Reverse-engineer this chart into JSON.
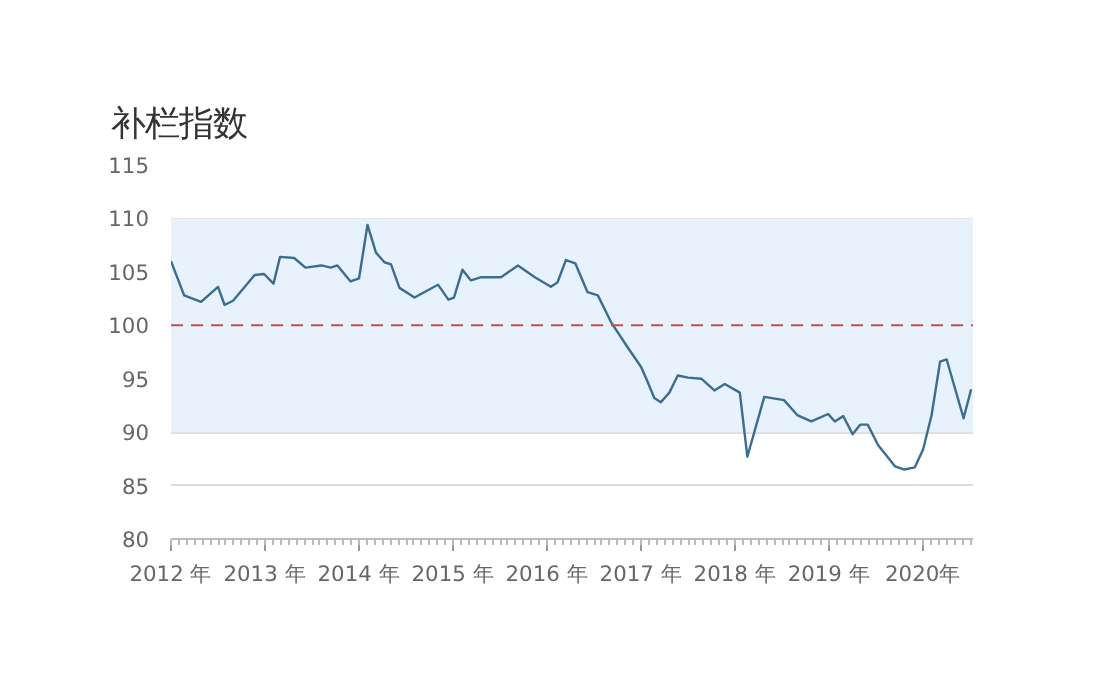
{
  "chart_data": {
    "type": "line",
    "title": "补栏指数",
    "x": [
      2012.0,
      2012.14,
      2012.32,
      2012.5,
      2012.57,
      2012.66,
      2012.89,
      2012.99,
      2013.09,
      2013.16,
      2013.31,
      2013.43,
      2013.6,
      2013.7,
      2013.77,
      2013.91,
      2014.0,
      2014.09,
      2014.18,
      2014.27,
      2014.34,
      2014.43,
      2014.59,
      2014.84,
      2014.95,
      2015.01,
      2015.1,
      2015.19,
      2015.3,
      2015.51,
      2015.69,
      2015.87,
      2016.04,
      2016.11,
      2016.2,
      2016.3,
      2016.43,
      2016.54,
      2016.68,
      2016.86,
      2017.0,
      2017.07,
      2017.14,
      2017.21,
      2017.3,
      2017.39,
      2017.5,
      2017.64,
      2017.78,
      2017.89,
      2018.05,
      2018.13,
      2018.31,
      2018.52,
      2018.66,
      2018.81,
      2018.99,
      2019.06,
      2019.15,
      2019.25,
      2019.33,
      2019.41,
      2019.52,
      2019.7,
      2019.8,
      2019.91,
      2020.0,
      2020.09,
      2020.18,
      2020.25,
      2020.43,
      2020.51
    ],
    "series": [
      {
        "color": "#3a6e8f",
        "values": [
          106.0,
          102.8,
          102.2,
          103.6,
          101.9,
          102.3,
          104.7,
          104.8,
          103.9,
          106.4,
          106.3,
          105.4,
          105.6,
          105.4,
          105.6,
          104.1,
          104.4,
          109.4,
          106.8,
          105.9,
          105.7,
          103.5,
          102.6,
          103.8,
          102.4,
          102.6,
          105.2,
          104.2,
          104.5,
          104.5,
          105.6,
          104.5,
          103.6,
          104.0,
          106.1,
          105.8,
          103.1,
          102.8,
          100.3,
          97.9,
          96.1,
          94.7,
          93.2,
          92.8,
          93.7,
          95.3,
          95.1,
          95.0,
          93.9,
          94.5,
          93.7,
          87.7,
          93.3,
          93.0,
          91.6,
          91.0,
          91.7,
          91.0,
          91.5,
          89.8,
          90.7,
          90.7,
          88.8,
          86.8,
          86.5,
          86.7,
          88.4,
          91.6,
          96.6,
          96.8,
          91.3,
          94.0
        ]
      }
    ],
    "xlim": [
      2012.0,
      2020.53
    ],
    "xticks": [
      {
        "value": 2012,
        "label": "2012 年"
      },
      {
        "value": 2013,
        "label": "2013 年"
      },
      {
        "value": 2014,
        "label": "2014 年"
      },
      {
        "value": 2015,
        "label": "2015 年"
      },
      {
        "value": 2016,
        "label": "2016 年"
      },
      {
        "value": 2017,
        "label": "2017 年"
      },
      {
        "value": 2018,
        "label": "2018 年"
      },
      {
        "value": 2019,
        "label": "2019 年"
      },
      {
        "value": 2020,
        "label": "2020年"
      }
    ],
    "ylim": [
      80,
      115
    ],
    "yticks": [
      80,
      85,
      90,
      95,
      100,
      105,
      110,
      115
    ],
    "grid": "y",
    "bands": [
      {
        "axis": "y",
        "from": 90,
        "to": 110,
        "color": "#e8f2fc"
      }
    ],
    "ref_lines": [
      {
        "axis": "y",
        "value": 100,
        "color": "#c0504d",
        "line_style": "dashed"
      }
    ],
    "line_style": "solid"
  }
}
